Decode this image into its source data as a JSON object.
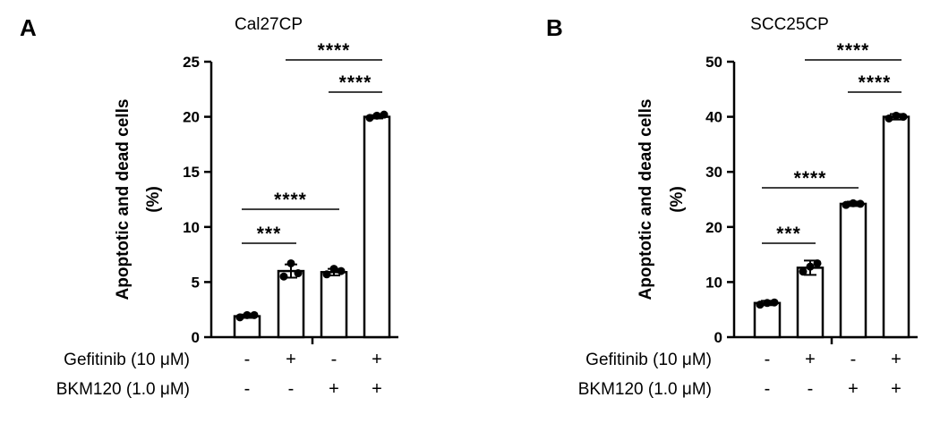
{
  "chart_data": [
    {
      "type": "bar",
      "panel": "A",
      "title": "Cal27CP",
      "ylabel": "Apoptotic and dead cells",
      "ylabel_unit": "(%)",
      "ylim": [
        0,
        25
      ],
      "yticks": [
        0,
        5,
        10,
        15,
        20,
        25
      ],
      "conditions": [
        {
          "label": "Gefitinib (10 μM)",
          "signs": [
            "-",
            "+",
            "-",
            "+"
          ]
        },
        {
          "label": "BKM120 (1.0 μM)",
          "signs": [
            "-",
            "-",
            "+",
            "+"
          ]
        }
      ],
      "values": [
        1.9,
        6.0,
        5.9,
        20.0
      ],
      "errors": [
        0.15,
        0.6,
        0.3,
        0.15
      ],
      "points": [
        [
          1.8,
          2.0,
          2.0
        ],
        [
          5.5,
          6.7,
          5.8
        ],
        [
          5.7,
          6.2,
          6.0
        ],
        [
          19.9,
          20.1,
          20.2
        ]
      ],
      "significance": [
        {
          "from": 0,
          "to": 1,
          "label": "***"
        },
        {
          "from": 0,
          "to": 2,
          "label": "****"
        },
        {
          "from": 2,
          "to": 3,
          "label": "****"
        },
        {
          "from": 1,
          "to": 3,
          "label": "****"
        }
      ]
    },
    {
      "type": "bar",
      "panel": "B",
      "title": "SCC25CP",
      "ylabel": "Apoptotic and dead cells",
      "ylabel_unit": "(%)",
      "ylim": [
        0,
        50
      ],
      "yticks": [
        0,
        10,
        20,
        30,
        40,
        50
      ],
      "conditions": [
        {
          "label": "Gefitinib (10 μM)",
          "signs": [
            "-",
            "+",
            "-",
            "+"
          ]
        },
        {
          "label": "BKM120 (1.0 μM)",
          "signs": [
            "-",
            "-",
            "+",
            "+"
          ]
        }
      ],
      "values": [
        6.2,
        12.6,
        24.2,
        40.0
      ],
      "errors": [
        0.4,
        1.3,
        0.4,
        0.5
      ],
      "points": [
        [
          5.9,
          6.2,
          6.3
        ],
        [
          11.9,
          12.8,
          13.4
        ],
        [
          24.0,
          24.3,
          24.2
        ],
        [
          39.7,
          40.2,
          40.0
        ]
      ],
      "significance": [
        {
          "from": 0,
          "to": 1,
          "label": "***"
        },
        {
          "from": 0,
          "to": 2,
          "label": "****"
        },
        {
          "from": 2,
          "to": 3,
          "label": "****"
        },
        {
          "from": 1,
          "to": 3,
          "label": "****"
        }
      ]
    }
  ]
}
